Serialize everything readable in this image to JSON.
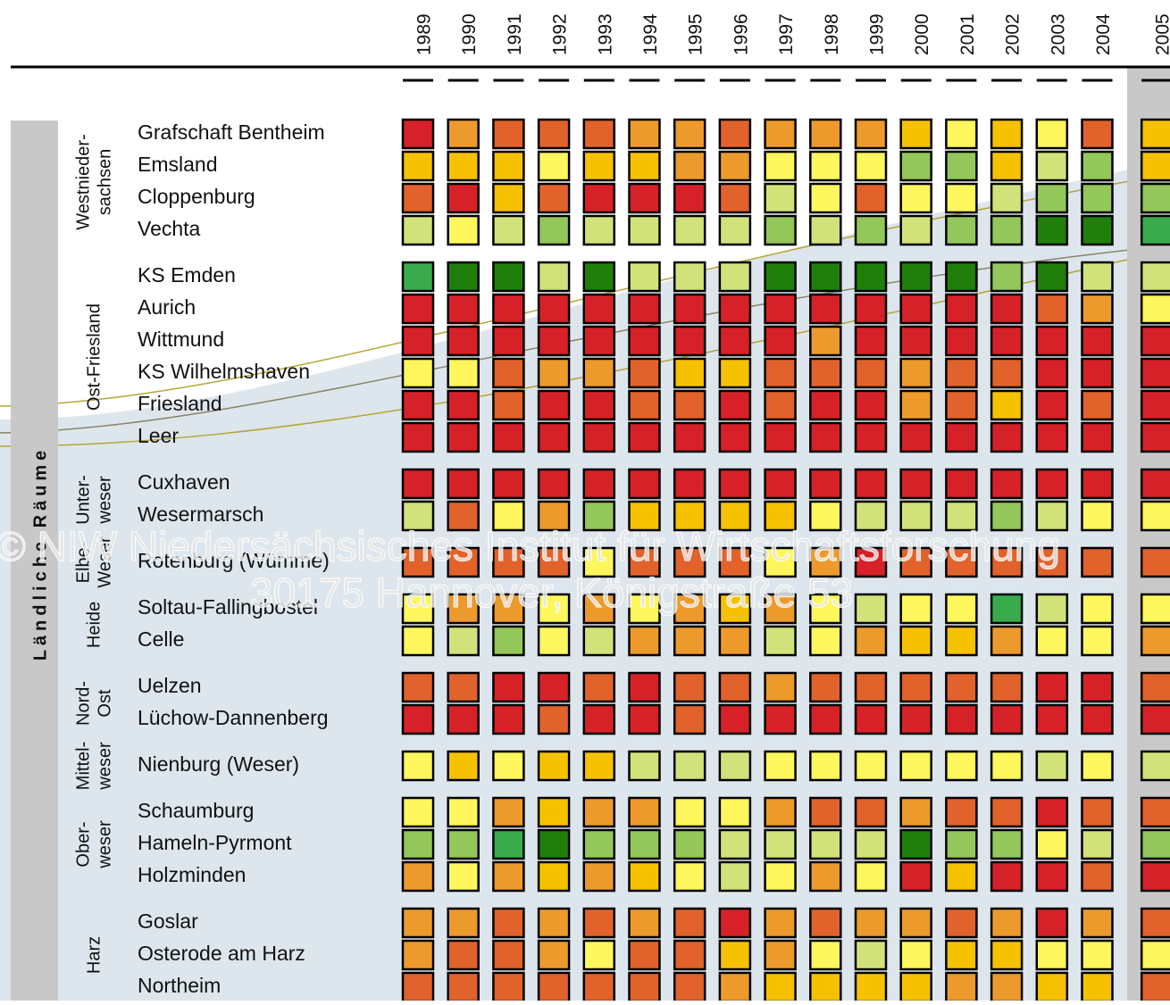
{
  "chart_data": {
    "type": "heatmap",
    "side_label": "Ländliche Räume",
    "watermark": [
      "© NIW Niedersächsisches Institut für Wirtschaftsforschung",
      "30175 Hannover, Königstraße 53"
    ],
    "years": [
      "1989",
      "1990",
      "1991",
      "1992",
      "1993",
      "1994",
      "1995",
      "1996",
      "1997",
      "1998",
      "1999",
      "2000",
      "2001",
      "2002",
      "2003",
      "2004",
      "2005"
    ],
    "colors": {
      "R": "#d62128",
      "O": "#e1622a",
      "A": "#ec9a2c",
      "G": "#f6c100",
      "Y": "#fdf65c",
      "L": "#d1e27a",
      "M": "#93c75a",
      "E": "#3aab4c",
      "D": "#1f7f0a"
    },
    "groups": [
      {
        "label": [
          "Westnieder-",
          "sachsen"
        ],
        "rows": [
          {
            "name": "Grafschaft Bentheim",
            "cells": [
              "R",
              "A",
              "O",
              "O",
              "O",
              "A",
              "A",
              "O",
              "A",
              "A",
              "A",
              "G",
              "Y",
              "G",
              "Y",
              "O",
              "G"
            ]
          },
          {
            "name": "Emsland",
            "cells": [
              "G",
              "G",
              "G",
              "Y",
              "G",
              "G",
              "A",
              "A",
              "Y",
              "Y",
              "Y",
              "M",
              "M",
              "G",
              "L",
              "M",
              "G"
            ]
          },
          {
            "name": "Cloppenburg",
            "cells": [
              "O",
              "R",
              "G",
              "O",
              "R",
              "R",
              "R",
              "O",
              "L",
              "Y",
              "O",
              "Y",
              "Y",
              "L",
              "M",
              "M",
              "M"
            ]
          },
          {
            "name": "Vechta",
            "cells": [
              "L",
              "Y",
              "L",
              "M",
              "L",
              "L",
              "L",
              "L",
              "M",
              "L",
              "M",
              "L",
              "M",
              "M",
              "D",
              "D",
              "E"
            ]
          }
        ]
      },
      {
        "label": [
          "Ost-Friesland"
        ],
        "rows": [
          {
            "name": "KS Emden",
            "cells": [
              "E",
              "D",
              "D",
              "L",
              "D",
              "L",
              "L",
              "L",
              "D",
              "D",
              "D",
              "D",
              "D",
              "M",
              "D",
              "L",
              "L"
            ]
          },
          {
            "name": "Aurich",
            "cells": [
              "R",
              "R",
              "R",
              "R",
              "R",
              "R",
              "R",
              "R",
              "R",
              "R",
              "R",
              "R",
              "R",
              "R",
              "O",
              "A",
              "Y"
            ]
          },
          {
            "name": "Wittmund",
            "cells": [
              "R",
              "R",
              "R",
              "R",
              "R",
              "R",
              "R",
              "R",
              "R",
              "A",
              "R",
              "R",
              "R",
              "R",
              "R",
              "R",
              "R"
            ]
          },
          {
            "name": "KS Wilhelmshaven",
            "cells": [
              "Y",
              "Y",
              "O",
              "A",
              "A",
              "O",
              "G",
              "G",
              "O",
              "O",
              "O",
              "A",
              "O",
              "O",
              "R",
              "R",
              "R"
            ]
          },
          {
            "name": "Friesland",
            "cells": [
              "R",
              "R",
              "O",
              "R",
              "R",
              "O",
              "O",
              "R",
              "O",
              "R",
              "R",
              "A",
              "O",
              "G",
              "R",
              "O",
              "R"
            ]
          },
          {
            "name": "Leer",
            "cells": [
              "R",
              "R",
              "R",
              "R",
              "R",
              "R",
              "R",
              "R",
              "R",
              "R",
              "R",
              "R",
              "R",
              "R",
              "R",
              "R",
              "R"
            ]
          }
        ]
      },
      {
        "label": [
          "Unter-",
          "weser"
        ],
        "rows": [
          {
            "name": "Cuxhaven",
            "cells": [
              "R",
              "R",
              "R",
              "R",
              "R",
              "R",
              "R",
              "R",
              "R",
              "R",
              "R",
              "R",
              "R",
              "R",
              "R",
              "R",
              "R"
            ]
          },
          {
            "name": "Wesermarsch",
            "cells": [
              "L",
              "O",
              "Y",
              "A",
              "M",
              "G",
              "G",
              "G",
              "G",
              "Y",
              "L",
              "L",
              "L",
              "M",
              "L",
              "Y",
              "Y"
            ]
          }
        ]
      },
      {
        "label": [
          "Elbe-",
          "Weser"
        ],
        "rows": [
          {
            "name": "Rotenburg (Wümme)",
            "cells": [
              "O",
              "O",
              "O",
              "O",
              "Y",
              "O",
              "O",
              "O",
              "Y",
              "A",
              "R",
              "O",
              "O",
              "O",
              "O",
              "O",
              "O"
            ]
          }
        ]
      },
      {
        "label": [
          "Heide"
        ],
        "rows": [
          {
            "name": "Soltau-Fallingbostel",
            "cells": [
              "Y",
              "A",
              "A",
              "Y",
              "A",
              "Y",
              "A",
              "G",
              "A",
              "Y",
              "L",
              "Y",
              "Y",
              "E",
              "L",
              "Y",
              "Y"
            ]
          },
          {
            "name": "Celle",
            "cells": [
              "Y",
              "L",
              "M",
              "Y",
              "L",
              "A",
              "A",
              "A",
              "L",
              "Y",
              "A",
              "G",
              "G",
              "A",
              "Y",
              "Y",
              "A"
            ]
          }
        ]
      },
      {
        "label": [
          "Nord-",
          "Ost"
        ],
        "rows": [
          {
            "name": "Uelzen",
            "cells": [
              "O",
              "O",
              "R",
              "R",
              "O",
              "R",
              "O",
              "O",
              "A",
              "O",
              "O",
              "O",
              "O",
              "O",
              "R",
              "R",
              "O"
            ]
          },
          {
            "name": "Lüchow-Dannenberg",
            "cells": [
              "R",
              "R",
              "R",
              "O",
              "R",
              "R",
              "O",
              "R",
              "R",
              "R",
              "R",
              "R",
              "R",
              "R",
              "R",
              "R",
              "R"
            ]
          }
        ]
      },
      {
        "label": [
          "Mittel-",
          "weser"
        ],
        "rows": [
          {
            "name": "Nienburg (Weser)",
            "cells": [
              "Y",
              "G",
              "Y",
              "G",
              "G",
              "L",
              "L",
              "L",
              "Y",
              "Y",
              "Y",
              "Y",
              "Y",
              "Y",
              "L",
              "Y",
              "L"
            ]
          }
        ]
      },
      {
        "label": [
          "Ober-",
          "weser"
        ],
        "rows": [
          {
            "name": "Schaumburg",
            "cells": [
              "Y",
              "Y",
              "A",
              "G",
              "A",
              "A",
              "Y",
              "Y",
              "A",
              "O",
              "O",
              "A",
              "O",
              "O",
              "R",
              "O",
              "O"
            ]
          },
          {
            "name": "Hameln-Pyrmont",
            "cells": [
              "M",
              "M",
              "E",
              "D",
              "M",
              "M",
              "M",
              "L",
              "L",
              "L",
              "L",
              "D",
              "M",
              "M",
              "Y",
              "L",
              "M"
            ]
          },
          {
            "name": "Holzminden",
            "cells": [
              "A",
              "Y",
              "A",
              "G",
              "A",
              "G",
              "Y",
              "L",
              "Y",
              "A",
              "Y",
              "R",
              "G",
              "R",
              "R",
              "O",
              "R"
            ]
          }
        ]
      },
      {
        "label": [
          "Harz"
        ],
        "rows": [
          {
            "name": "Goslar",
            "cells": [
              "A",
              "A",
              "O",
              "A",
              "O",
              "A",
              "O",
              "R",
              "A",
              "O",
              "A",
              "A",
              "O",
              "A",
              "R",
              "A",
              "O"
            ]
          },
          {
            "name": "Osterode am Harz",
            "cells": [
              "A",
              "O",
              "O",
              "A",
              "Y",
              "O",
              "O",
              "G",
              "A",
              "Y",
              "L",
              "Y",
              "G",
              "G",
              "Y",
              "Y",
              "Y"
            ]
          },
          {
            "name": "Northeim",
            "cells": [
              "O",
              "O",
              "O",
              "O",
              "O",
              "O",
              "O",
              "A",
              "G",
              "G",
              "G",
              "G",
              "A",
              "A",
              "G",
              "G",
              "O"
            ]
          }
        ]
      }
    ]
  }
}
